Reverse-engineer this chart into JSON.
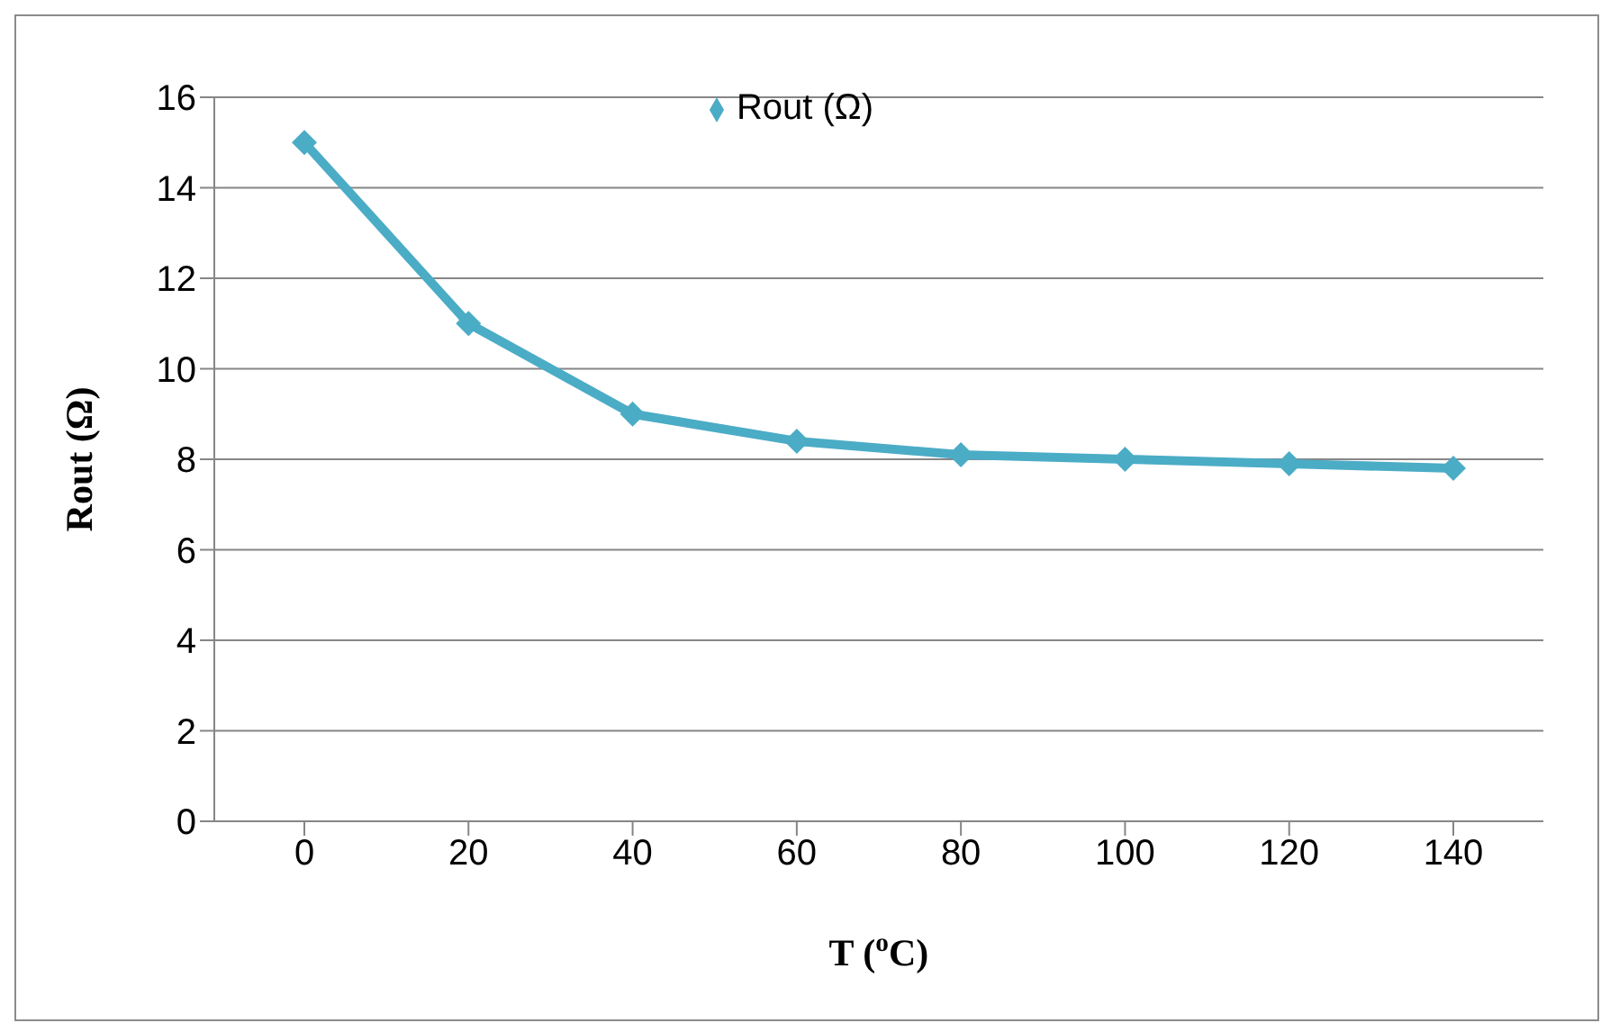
{
  "chart_data": {
    "type": "line",
    "xlabel": "T ($^{o}$C)",
    "ylabel": "Rout (Ω)",
    "categories": [
      "0",
      "20",
      "40",
      "60",
      "80",
      "100",
      "120",
      "140"
    ],
    "series": [
      {
        "name": "Rout (Ω)",
        "color": "#4bacc6",
        "values": [
          15,
          11,
          9,
          8.4,
          8.1,
          8.0,
          7.9,
          7.8
        ]
      }
    ],
    "ylim": [
      0,
      16
    ],
    "yticks": [
      0,
      2,
      4,
      6,
      8,
      10,
      12,
      14,
      16
    ],
    "grid": "y",
    "legend": "top",
    "marker": "diamond",
    "line_style": "solid"
  }
}
